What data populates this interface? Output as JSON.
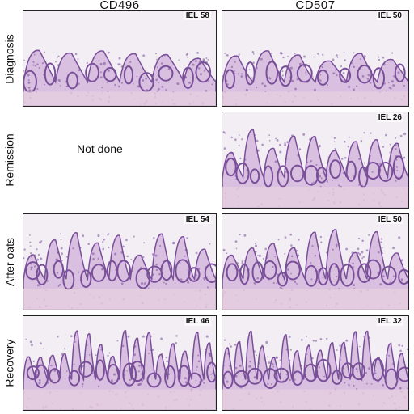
{
  "columns": [
    "CD496",
    "CD507"
  ],
  "rows": [
    "Diagnosis",
    "Remission",
    "After oats",
    "Recovery"
  ],
  "panels": {
    "cd496_diagnosis": "IEL 58",
    "cd507_diagnosis": "IEL 50",
    "cd507_remission": "IEL 26",
    "cd496_after_oats": "IEL 54",
    "cd507_after_oats": "IEL 50",
    "cd496_recovery": "IEL 46",
    "cd507_recovery": "IEL 32"
  },
  "cd496_remission_text": "Not done",
  "colors": {
    "stain_dark": "#7a4f9a",
    "stain_light": "#d9bfe0",
    "background": "#f2eef4",
    "border": "#222222"
  }
}
